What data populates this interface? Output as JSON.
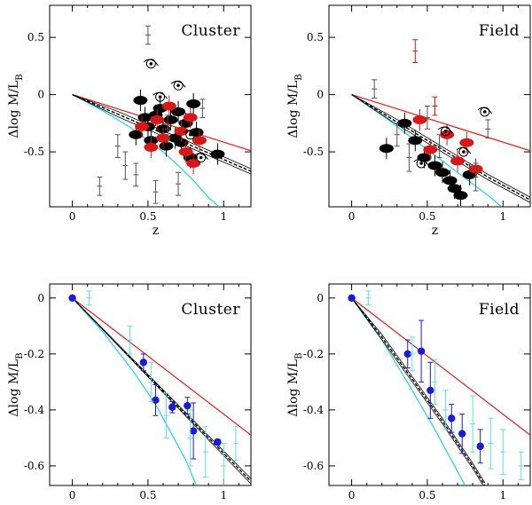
{
  "colors": {
    "axis": "#000000",
    "model_red": "#e0201e",
    "model_cyan": "#22d3e6",
    "model_black": "#000000",
    "points_red": "#d61818",
    "points_black": "#000000",
    "points_blue": "#1a1ad8",
    "errbar_cyan": "#5fdfe9",
    "errbar_grey": "#555555"
  },
  "chart_data": [
    {
      "type": "scatter",
      "panel": "top-left",
      "title": "Cluster",
      "xlabel": "z",
      "ylabel_main": "Δlog M/L",
      "ylabel_sub": "B",
      "xlim": [
        -0.15,
        1.18
      ],
      "ylim": [
        -0.98,
        0.78
      ],
      "xticks": [
        0,
        0.5,
        1
      ],
      "xtick_labels": [
        "0",
        "0.5",
        "1"
      ],
      "yticks": [
        0.5,
        0,
        -0.5
      ],
      "ytick_labels": [
        "0.5",
        "0",
        "-0.5"
      ],
      "models": [
        {
          "name": "red",
          "x": [
            0,
            1.18
          ],
          "y": [
            0,
            -0.49
          ]
        },
        {
          "name": "cyan",
          "x": [
            0,
            0.2,
            0.4,
            0.6,
            0.7,
            0.8,
            0.9,
            0.97
          ],
          "y": [
            0,
            -0.14,
            -0.3,
            -0.5,
            -0.62,
            -0.75,
            -0.9,
            -0.98
          ]
        },
        {
          "name": "black",
          "x": [
            0,
            0.3,
            0.6,
            0.9,
            1.18
          ],
          "y": [
            0,
            -0.17,
            -0.34,
            -0.51,
            -0.67
          ]
        }
      ],
      "series": [
        {
          "name": "black-ellipticals",
          "marker": "ellipse",
          "x": [
            0.42,
            0.45,
            0.48,
            0.5,
            0.52,
            0.55,
            0.58,
            0.6,
            0.62,
            0.65,
            0.68,
            0.7,
            0.72,
            0.75,
            0.78,
            0.8,
            0.82,
            0.96
          ],
          "y": [
            -0.35,
            -0.05,
            -0.2,
            -0.28,
            -0.4,
            -0.18,
            -0.12,
            -0.3,
            -0.45,
            -0.22,
            -0.38,
            -0.15,
            -0.42,
            -0.25,
            -0.55,
            -0.08,
            -0.33,
            -0.52
          ]
        },
        {
          "name": "red-ellipticals",
          "marker": "ellipse",
          "x": [
            0.46,
            0.52,
            0.56,
            0.6,
            0.64,
            0.72,
            0.75,
            0.78,
            0.8,
            0.84
          ],
          "y": [
            -0.28,
            -0.46,
            -0.22,
            -0.38,
            -0.1,
            -0.32,
            -0.5,
            -0.2,
            -0.6,
            -0.4
          ]
        },
        {
          "name": "black-crosses",
          "marker": "errorbar",
          "x": [
            0.18,
            0.3,
            0.35,
            0.42,
            0.5,
            0.55,
            0.63,
            0.7,
            0.86
          ],
          "y": [
            -0.8,
            -0.45,
            -0.62,
            -0.7,
            0.52,
            -0.85,
            -0.3,
            -0.78,
            -0.12
          ],
          "err": [
            0.08,
            0.1,
            0.12,
            0.1,
            0.08,
            0.1,
            0.12,
            0.1,
            0.08
          ]
        },
        {
          "name": "black-spirals",
          "marker": "spiral",
          "x": [
            0.52,
            0.58,
            0.7,
            0.78,
            0.85
          ],
          "y": [
            0.27,
            -0.02,
            0.08,
            -0.35,
            -0.55
          ]
        }
      ]
    },
    {
      "type": "scatter",
      "panel": "top-right",
      "title": "Field",
      "xlabel": "z",
      "ylabel_main": "Δlog M/L",
      "ylabel_sub": "B",
      "xlim": [
        -0.15,
        1.18
      ],
      "ylim": [
        -0.98,
        0.78
      ],
      "xticks": [
        0,
        0.5,
        1
      ],
      "xtick_labels": [
        "0",
        "0.5",
        "1"
      ],
      "yticks": [
        0.5,
        0,
        -0.5
      ],
      "ytick_labels": [
        "0.5",
        "0",
        "-0.5"
      ],
      "models": [
        {
          "name": "red",
          "x": [
            0,
            1.18
          ],
          "y": [
            0,
            -0.49
          ]
        },
        {
          "name": "cyan",
          "x": [
            0,
            0.2,
            0.4,
            0.6,
            0.8,
            0.92,
            0.99
          ],
          "y": [
            0,
            -0.18,
            -0.38,
            -0.58,
            -0.78,
            -0.9,
            -0.98
          ]
        },
        {
          "name": "black",
          "x": [
            0,
            0.3,
            0.6,
            0.9,
            1.18
          ],
          "y": [
            0,
            -0.24,
            -0.48,
            -0.72,
            -0.92
          ]
        }
      ],
      "series": [
        {
          "name": "black-ellipticals",
          "marker": "ellipse",
          "x": [
            0.23,
            0.35,
            0.42,
            0.48,
            0.55,
            0.6,
            0.65,
            0.68,
            0.72,
            0.78
          ],
          "y": [
            -0.47,
            -0.25,
            -0.4,
            -0.55,
            -0.62,
            -0.68,
            -0.75,
            -0.82,
            -0.88,
            -0.7
          ]
        },
        {
          "name": "red-ellipticals",
          "marker": "ellipse",
          "x": [
            0.45,
            0.52,
            0.63,
            0.7,
            0.76,
            0.82
          ],
          "y": [
            -0.22,
            -0.48,
            -0.35,
            -0.58,
            -0.42,
            -0.65
          ]
        },
        {
          "name": "black-crosses",
          "marker": "errorbar",
          "x": [
            0.15,
            0.3,
            0.38,
            0.5,
            0.58,
            0.82,
            0.9
          ],
          "y": [
            0.05,
            -0.35,
            -0.55,
            -0.2,
            -0.45,
            -0.72,
            -0.3
          ],
          "err": [
            0.08,
            0.1,
            0.12,
            0.1,
            0.1,
            0.12,
            0.08
          ]
        },
        {
          "name": "red-crosses",
          "marker": "errorbar",
          "x": [
            0.42,
            0.55
          ],
          "y": [
            0.38,
            -0.1
          ],
          "err": [
            0.1,
            0.08
          ]
        },
        {
          "name": "black-spirals",
          "marker": "spiral",
          "x": [
            0.46,
            0.62,
            0.74,
            0.88
          ],
          "y": [
            -0.6,
            -0.32,
            -0.5,
            -0.15
          ]
        }
      ]
    },
    {
      "type": "scatter",
      "panel": "bottom-left",
      "title": "Cluster",
      "xlabel": "z",
      "ylabel_main": "Δlog M/L",
      "ylabel_sub": "B",
      "xlim": [
        -0.15,
        1.18
      ],
      "ylim": [
        -0.67,
        0.05
      ],
      "xticks": [
        0,
        0.5,
        1
      ],
      "xtick_labels": [
        "0",
        "0.5",
        "1"
      ],
      "yticks": [
        0,
        -0.2,
        -0.4,
        -0.6
      ],
      "ytick_labels": [
        "0",
        "-0.2",
        "-0.4",
        "-0.6"
      ],
      "models": [
        {
          "name": "red",
          "x": [
            0,
            1.18
          ],
          "y": [
            0,
            -0.49
          ]
        },
        {
          "name": "cyan",
          "x": [
            0,
            0.2,
            0.4,
            0.55,
            0.65,
            0.75,
            0.82
          ],
          "y": [
            0,
            -0.12,
            -0.26,
            -0.38,
            -0.48,
            -0.58,
            -0.67
          ]
        },
        {
          "name": "black",
          "x": [
            0,
            1.18
          ],
          "y": [
            0,
            -0.655
          ]
        }
      ],
      "series": [
        {
          "name": "blue-points",
          "marker": "circle",
          "x": [
            0,
            0.47,
            0.55,
            0.66,
            0.76,
            0.8,
            0.96
          ],
          "y": [
            0,
            -0.23,
            -0.365,
            -0.39,
            -0.385,
            -0.475,
            -0.515
          ],
          "err": [
            0,
            0.03,
            0.055,
            0.02,
            0.03,
            0.1,
            0.01
          ]
        },
        {
          "name": "cyan-errorbars",
          "marker": "errorbar",
          "x": [
            0.11,
            0.38,
            0.52,
            0.62,
            0.78,
            0.88,
            1.0,
            1.08
          ],
          "y": [
            0,
            -0.15,
            -0.3,
            -0.42,
            -0.5,
            -0.55,
            -0.6,
            -0.52
          ],
          "err": [
            0.025,
            0.05,
            0.07,
            0.08,
            0.1,
            0.09,
            0.08,
            0.06
          ]
        }
      ]
    },
    {
      "type": "scatter",
      "panel": "bottom-right",
      "title": "Field",
      "xlabel": "z",
      "ylabel_main": "Δlog M/L",
      "ylabel_sub": "B",
      "xlim": [
        -0.15,
        1.18
      ],
      "ylim": [
        -0.67,
        0.05
      ],
      "xticks": [
        0,
        0.5,
        1
      ],
      "xtick_labels": [
        "0",
        "0.5",
        "1"
      ],
      "yticks": [
        0,
        -0.2,
        -0.4,
        -0.6
      ],
      "ytick_labels": [
        "0",
        "-0.2",
        "-0.4",
        "-0.6"
      ],
      "models": [
        {
          "name": "red",
          "x": [
            0,
            1.18
          ],
          "y": [
            0,
            -0.49
          ]
        },
        {
          "name": "cyan",
          "x": [
            0,
            0.2,
            0.4,
            0.55,
            0.68,
            0.75
          ],
          "y": [
            0,
            -0.15,
            -0.33,
            -0.47,
            -0.6,
            -0.67
          ]
        },
        {
          "name": "black",
          "x": [
            0,
            0.2,
            0.4,
            0.6,
            0.8,
            0.88
          ],
          "y": [
            0,
            -0.14,
            -0.29,
            -0.44,
            -0.6,
            -0.67
          ]
        }
      ],
      "series": [
        {
          "name": "blue-points",
          "marker": "circle",
          "x": [
            0,
            0.37,
            0.46,
            0.52,
            0.66,
            0.73,
            0.85
          ],
          "y": [
            0,
            -0.2,
            -0.19,
            -0.33,
            -0.43,
            -0.485,
            -0.53
          ],
          "err": [
            0,
            0.05,
            0.11,
            0.1,
            0.05,
            0.07,
            0.06
          ]
        },
        {
          "name": "cyan-errorbars",
          "marker": "errorbar",
          "x": [
            0.11,
            0.4,
            0.55,
            0.62,
            0.8,
            0.92,
            1.0,
            1.12
          ],
          "y": [
            0,
            -0.2,
            -0.3,
            -0.4,
            -0.45,
            -0.52,
            -0.55,
            -0.6
          ],
          "err": [
            0.025,
            0.06,
            0.08,
            0.07,
            0.1,
            0.09,
            0.08,
            0.05
          ]
        }
      ]
    }
  ]
}
